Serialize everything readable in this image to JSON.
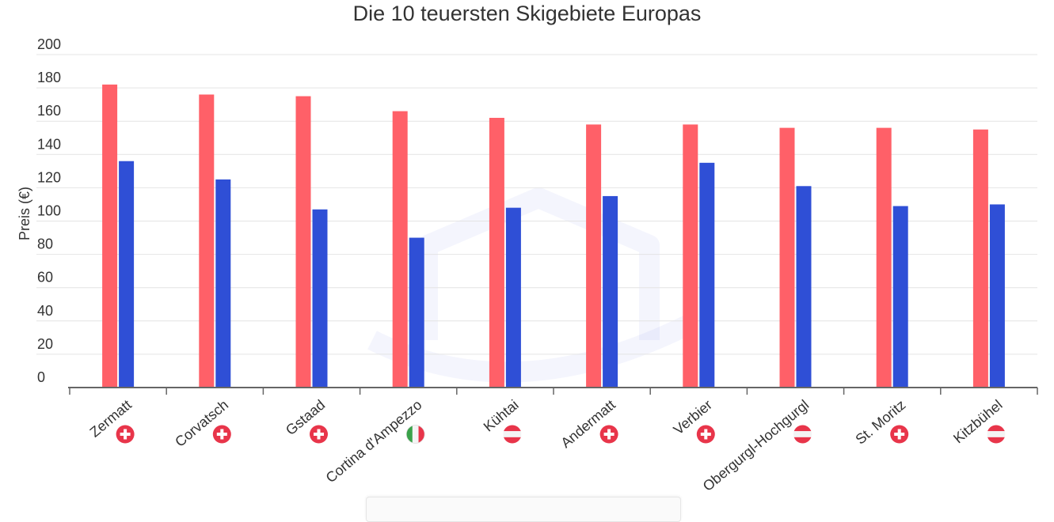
{
  "chart_data": {
    "type": "bar",
    "title": "Die 10 teuersten Skigebiete Europas",
    "xlabel": "",
    "ylabel": "Preis (€)",
    "ylim": [
      0,
      200
    ],
    "yticks": [
      0,
      20,
      40,
      60,
      80,
      100,
      120,
      140,
      160,
      180,
      200
    ],
    "grid": true,
    "categories": [
      "Zermatt",
      "Corvatsch",
      "Gstaad",
      "Cortina d'Ampezzo",
      "Kühtai",
      "Andermatt",
      "Verbier",
      "Obergurgl-Hochgurgl",
      "St. Moritz",
      "Kitzbühel"
    ],
    "category_flags": [
      "switzerland-flag-icon",
      "switzerland-flag-icon",
      "switzerland-flag-icon",
      "italy-flag-icon",
      "austria-flag-icon",
      "switzerland-flag-icon",
      "switzerland-flag-icon",
      "austria-flag-icon",
      "switzerland-flag-icon",
      "austria-flag-icon"
    ],
    "series": [
      {
        "values": [
          182,
          176,
          175,
          166,
          162,
          158,
          158,
          156,
          156,
          155
        ],
        "color": "#ff6068"
      },
      {
        "values": [
          136,
          125,
          107,
          90,
          108,
          115,
          135,
          121,
          109,
          110
        ],
        "color": "#2f4fd6"
      }
    ],
    "colors": {
      "grid": "#e4e4e4",
      "axis": "#666666",
      "tick_text": "#333333",
      "switzerland": "#e8354a",
      "italy_green": "#3aa24a",
      "italy_red": "#e8354a",
      "austria_red": "#e8354a"
    }
  }
}
